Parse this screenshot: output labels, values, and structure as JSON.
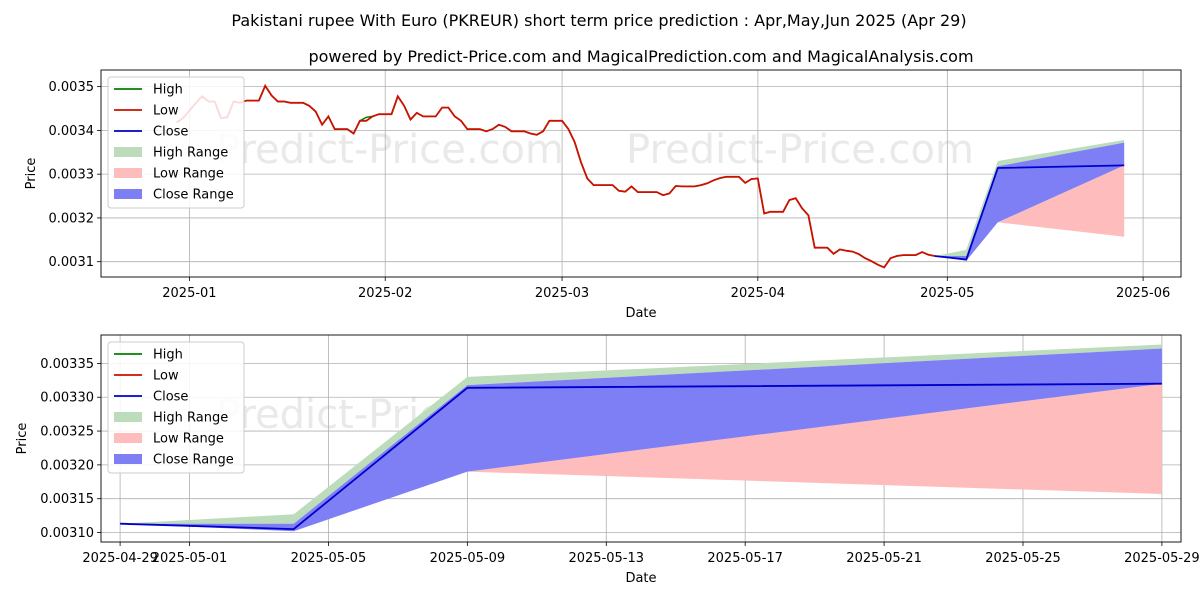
{
  "title": "Pakistani rupee With Euro (PKREUR) short term price prediction : Apr,May,Jun 2025 (Apr 29)",
  "subtitle": "powered by Predict-Price.com and MagicalPrediction.com and MagicalAnalysis.com",
  "watermark": "Predict-Price.com",
  "colors": {
    "high": "#008000",
    "low": "#cc1100",
    "close": "#0000cc",
    "high_range": "#bcdcbc",
    "low_range": "#ffbcbc",
    "close_range": "#7f7ff5",
    "grid": "#b0b0b0"
  },
  "legend": {
    "position": "top-left",
    "items": [
      "High",
      "Low",
      "Close",
      "High Range",
      "Low Range",
      "Close Range"
    ]
  },
  "chart_data": [
    {
      "type": "line",
      "xlabel": "Date",
      "ylabel": "Price",
      "xlim": [
        "2024-12-18",
        "2025-06-07"
      ],
      "ylim": [
        0.003065,
        0.003538
      ],
      "grid": true,
      "xticks": [
        "2025-01",
        "2025-02",
        "2025-03",
        "2025-04",
        "2025-05",
        "2025-06"
      ],
      "xtick_dates": [
        "2025-01-01",
        "2025-02-01",
        "2025-03-01",
        "2025-04-01",
        "2025-05-01",
        "2025-06-01"
      ],
      "yticks": [
        "0.0031",
        "0.0032",
        "0.0033",
        "0.0034",
        "0.0035"
      ],
      "ytick_values": [
        0.0031,
        0.0032,
        0.0033,
        0.0034,
        0.0035
      ],
      "history": {
        "dates": [
          "2024-12-30",
          "2024-12-31",
          "2025-01-01",
          "2025-01-02",
          "2025-01-03",
          "2025-01-04",
          "2025-01-05",
          "2025-01-06",
          "2025-01-07",
          "2025-01-08",
          "2025-01-09",
          "2025-01-10",
          "2025-01-11",
          "2025-01-12",
          "2025-01-13",
          "2025-01-14",
          "2025-01-15",
          "2025-01-16",
          "2025-01-17",
          "2025-01-18",
          "2025-01-19",
          "2025-01-20",
          "2025-01-21",
          "2025-01-22",
          "2025-01-23",
          "2025-01-24",
          "2025-01-25",
          "2025-01-26",
          "2025-01-27",
          "2025-01-28",
          "2025-01-29",
          "2025-01-30",
          "2025-01-31",
          "2025-02-01",
          "2025-02-02",
          "2025-02-03",
          "2025-02-04",
          "2025-02-05",
          "2025-02-06",
          "2025-02-07",
          "2025-02-08",
          "2025-02-09",
          "2025-02-10",
          "2025-02-11",
          "2025-02-12",
          "2025-02-13",
          "2025-02-14",
          "2025-02-15",
          "2025-02-16",
          "2025-02-17",
          "2025-02-18",
          "2025-02-19",
          "2025-02-20",
          "2025-02-21",
          "2025-02-22",
          "2025-02-23",
          "2025-02-24",
          "2025-02-25",
          "2025-02-26",
          "2025-02-27",
          "2025-02-28",
          "2025-03-01",
          "2025-03-02",
          "2025-03-03",
          "2025-03-04",
          "2025-03-05",
          "2025-03-06",
          "2025-03-07",
          "2025-03-08",
          "2025-03-09",
          "2025-03-10",
          "2025-03-11",
          "2025-03-12",
          "2025-03-13",
          "2025-03-14",
          "2025-03-15",
          "2025-03-16",
          "2025-03-17",
          "2025-03-18",
          "2025-03-19",
          "2025-03-20",
          "2025-03-21",
          "2025-03-22",
          "2025-03-23",
          "2025-03-24",
          "2025-03-25",
          "2025-03-26",
          "2025-03-27",
          "2025-03-28",
          "2025-03-29",
          "2025-03-30",
          "2025-03-31",
          "2025-04-01",
          "2025-04-02",
          "2025-04-03",
          "2025-04-04",
          "2025-04-05",
          "2025-04-06",
          "2025-04-07",
          "2025-04-08",
          "2025-04-09",
          "2025-04-10",
          "2025-04-11",
          "2025-04-12",
          "2025-04-13",
          "2025-04-14",
          "2025-04-15",
          "2025-04-16",
          "2025-04-17",
          "2025-04-18",
          "2025-04-19",
          "2025-04-20",
          "2025-04-21",
          "2025-04-22",
          "2025-04-23",
          "2025-04-24",
          "2025-04-25",
          "2025-04-26",
          "2025-04-27",
          "2025-04-28",
          "2025-04-29"
        ],
        "low": [
          0.003418,
          0.003428,
          0.003445,
          0.003462,
          0.003478,
          0.003466,
          0.003466,
          0.003428,
          0.00343,
          0.003466,
          0.003463,
          0.003468,
          0.003468,
          0.003468,
          0.003502,
          0.00348,
          0.003466,
          0.003466,
          0.003463,
          0.003463,
          0.003463,
          0.003456,
          0.003443,
          0.003413,
          0.003432,
          0.003403,
          0.003403,
          0.003403,
          0.003393,
          0.003422,
          0.003422,
          0.003432,
          0.003437,
          0.003437,
          0.003437,
          0.003478,
          0.003456,
          0.003425,
          0.00344,
          0.003432,
          0.003432,
          0.003432,
          0.003452,
          0.003452,
          0.003432,
          0.003422,
          0.003403,
          0.003403,
          0.003403,
          0.003398,
          0.003403,
          0.003413,
          0.003408,
          0.003398,
          0.003398,
          0.003398,
          0.003393,
          0.00339,
          0.003398,
          0.003422,
          0.003422,
          0.003422,
          0.003403,
          0.003373,
          0.003327,
          0.00329,
          0.003275,
          0.003275,
          0.003275,
          0.003275,
          0.003262,
          0.00326,
          0.003272,
          0.003259,
          0.003259,
          0.003259,
          0.003259,
          0.003252,
          0.003256,
          0.003273,
          0.003272,
          0.003272,
          0.003272,
          0.003275,
          0.003279,
          0.003286,
          0.003291,
          0.003294,
          0.003294,
          0.003294,
          0.00328,
          0.003289,
          0.00329,
          0.00321,
          0.003214,
          0.003214,
          0.003214,
          0.003241,
          0.003245,
          0.003222,
          0.003206,
          0.003132,
          0.003132,
          0.003132,
          0.003118,
          0.003128,
          0.003125,
          0.003123,
          0.003117,
          0.003108,
          0.003101,
          0.003093,
          0.003087,
          0.003108,
          0.003113,
          0.003115,
          0.003115,
          0.003115,
          0.003122,
          0.003116,
          0.003113
        ],
        "high": [
          0.003418,
          0.003428,
          0.003445,
          0.003462,
          0.003478,
          0.003466,
          0.003466,
          0.003428,
          0.00343,
          0.003466,
          0.003463,
          0.003468,
          0.003468,
          0.003468,
          0.003502,
          0.00348,
          0.003466,
          0.003466,
          0.003463,
          0.003463,
          0.003463,
          0.003456,
          0.003443,
          0.003413,
          0.003432,
          0.003403,
          0.003403,
          0.003403,
          0.003393,
          0.003422,
          0.00343,
          0.003432,
          0.003437,
          0.003437,
          0.003437,
          0.003478,
          0.003456,
          0.003425,
          0.00344,
          0.003432,
          0.003432,
          0.003432,
          0.003452,
          0.003452,
          0.003432,
          0.003422,
          0.003403,
          0.003403,
          0.003403,
          0.003398,
          0.003403,
          0.003413,
          0.003408,
          0.003398,
          0.003398,
          0.003398,
          0.003393,
          0.00339,
          0.003398,
          0.003422,
          0.003422,
          0.003422,
          0.003403,
          0.003373,
          0.003327,
          0.00329,
          0.003275,
          0.003275,
          0.003275,
          0.003275,
          0.003262,
          0.00326,
          0.003272,
          0.003259,
          0.003259,
          0.003259,
          0.003259,
          0.003252,
          0.003256,
          0.003273,
          0.003272,
          0.003272,
          0.003272,
          0.003275,
          0.003279,
          0.003286,
          0.003291,
          0.003294,
          0.003294,
          0.003294,
          0.00328,
          0.003289,
          0.00329,
          0.00321,
          0.003214,
          0.003214,
          0.003214,
          0.003241,
          0.003245,
          0.003222,
          0.003206,
          0.003132,
          0.003132,
          0.003132,
          0.003118,
          0.003128,
          0.003125,
          0.003123,
          0.003117,
          0.003108,
          0.003101,
          0.003093,
          0.003087,
          0.003108,
          0.003113,
          0.003115,
          0.003115,
          0.003115,
          0.003122,
          0.003116,
          0.003113
        ]
      },
      "forecast": {
        "dates": [
          "2025-04-29",
          "2025-05-04",
          "2025-05-09",
          "2025-05-29"
        ],
        "close": [
          0.003113,
          0.003105,
          0.003314,
          0.00332
        ],
        "high_range_upper": [
          0.003113,
          0.003127,
          0.00333,
          0.003378
        ],
        "close_range_upper": [
          0.003113,
          0.003113,
          0.003318,
          0.003372
        ],
        "close_range_lower": [
          0.003113,
          0.003102,
          0.00319,
          0.00332
        ],
        "low_range_upper": [
          0.003113,
          0.003102,
          0.00319,
          0.00332
        ],
        "low_range_lower": [
          0.003113,
          0.003102,
          0.00319,
          0.003157
        ]
      }
    },
    {
      "type": "line",
      "xlabel": "Date",
      "ylabel": "Price",
      "xlim": [
        "2025-04-28.45",
        "2025-05-29.55"
      ],
      "ylim": [
        0.003086,
        0.003392
      ],
      "grid": true,
      "xticks": [
        "2025-04-29",
        "2025-05-01",
        "2025-05-05",
        "2025-05-09",
        "2025-05-13",
        "2025-05-17",
        "2025-05-21",
        "2025-05-25",
        "2025-05-29"
      ],
      "yticks": [
        "0.00310",
        "0.00315",
        "0.00320",
        "0.00325",
        "0.00330",
        "0.00335"
      ],
      "ytick_values": [
        0.0031,
        0.00315,
        0.0032,
        0.00325,
        0.0033,
        0.00335
      ],
      "forecast": {
        "dates": [
          "2025-04-29",
          "2025-05-04",
          "2025-05-09",
          "2025-05-29"
        ],
        "close": [
          0.003113,
          0.003105,
          0.003314,
          0.00332
        ],
        "high_range_upper": [
          0.003113,
          0.003127,
          0.00333,
          0.003378
        ],
        "close_range_upper": [
          0.003113,
          0.003113,
          0.003318,
          0.003372
        ],
        "close_range_lower": [
          0.003113,
          0.003102,
          0.00319,
          0.00332
        ],
        "low_range_upper": [
          0.003113,
          0.003102,
          0.00319,
          0.00332
        ],
        "low_range_lower": [
          0.003113,
          0.003102,
          0.00319,
          0.003157
        ]
      }
    }
  ]
}
